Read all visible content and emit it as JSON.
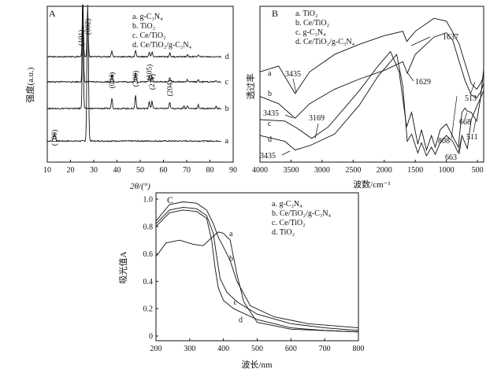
{
  "chart_data": [
    {
      "panel": "A",
      "type": "line",
      "xlabel": "2θ/(°)",
      "ylabel": "强度(a.u.)",
      "xlim": [
        10,
        90
      ],
      "x_ticks": [
        "10",
        "20",
        "30",
        "40",
        "50",
        "60",
        "70",
        "80",
        "90"
      ],
      "legend": [
        {
          "key": "a",
          "text": "a. g-C₃N₄"
        },
        {
          "key": "b",
          "text": "b. TiO₂"
        },
        {
          "key": "c",
          "text": "c. Ce/TiO₂"
        },
        {
          "key": "d",
          "text": "d. Ce/TiO₂/g-C₃N₄"
        }
      ],
      "peak_labels": [
        {
          "text": "(002)",
          "x": 27.4
        },
        {
          "text": "(101)",
          "x": 25.3
        },
        {
          "text": "(100)",
          "x": 13.1
        },
        {
          "text": "(004)",
          "x": 37.8
        },
        {
          "text": "(200)",
          "x": 48.0
        },
        {
          "text": "(105)",
          "x": 53.9
        },
        {
          "text": "(211)",
          "x": 55.1
        },
        {
          "text": "(204)",
          "x": 62.7
        }
      ],
      "series": [
        {
          "name": "a",
          "baseline": 0.1,
          "peaks": [
            [
              13.1,
              0.05,
              0.6
            ],
            [
              27.4,
              0.95,
              0.45
            ]
          ]
        },
        {
          "name": "b",
          "baseline": 0.32,
          "peaks": [
            [
              25.3,
              0.6,
              0.35
            ],
            [
              37.8,
              0.07,
              0.35
            ],
            [
              48.0,
              0.09,
              0.35
            ],
            [
              53.9,
              0.05,
              0.35
            ],
            [
              55.1,
              0.05,
              0.35
            ],
            [
              62.7,
              0.04,
              0.35
            ],
            [
              68.8,
              0.02,
              0.3
            ],
            [
              70.3,
              0.02,
              0.3
            ],
            [
              75.0,
              0.025,
              0.3
            ],
            [
              82.7,
              0.015,
              0.3
            ]
          ]
        },
        {
          "name": "c",
          "baseline": 0.5,
          "peaks": [
            [
              25.3,
              0.55,
              0.35
            ],
            [
              37.8,
              0.05,
              0.35
            ],
            [
              48.0,
              0.06,
              0.35
            ],
            [
              53.9,
              0.04,
              0.35
            ],
            [
              55.1,
              0.04,
              0.35
            ],
            [
              62.7,
              0.03,
              0.35
            ],
            [
              70.3,
              0.015,
              0.3
            ],
            [
              75.0,
              0.015,
              0.3
            ],
            [
              82.7,
              0.01,
              0.3
            ]
          ]
        },
        {
          "name": "d",
          "baseline": 0.67,
          "peaks": [
            [
              25.3,
              0.4,
              0.35
            ],
            [
              27.4,
              0.3,
              0.35
            ],
            [
              37.8,
              0.04,
              0.35
            ],
            [
              48.0,
              0.045,
              0.35
            ],
            [
              53.9,
              0.03,
              0.35
            ],
            [
              55.1,
              0.03,
              0.35
            ],
            [
              62.7,
              0.025,
              0.35
            ],
            [
              70.3,
              0.012,
              0.3
            ],
            [
              75.0,
              0.012,
              0.3
            ]
          ]
        }
      ]
    },
    {
      "panel": "B",
      "type": "line",
      "xlabel": "波数/cm⁻¹",
      "ylabel": "透过率",
      "xlim": [
        4000,
        400
      ],
      "x_ticks": [
        "4000",
        "3500",
        "3000",
        "2500",
        "2000",
        "1500",
        "1000",
        "500"
      ],
      "legend": [
        {
          "key": "a",
          "text": "a. TiO₂"
        },
        {
          "key": "b",
          "text": "b. Ce/TiO₂"
        },
        {
          "key": "c",
          "text": "c. g-C₃N₄"
        },
        {
          "key": "d",
          "text": "d. Ce/TiO₂/g-C₃N₄"
        }
      ],
      "annotations": [
        "1637",
        "3435",
        "1629",
        "513",
        "3435",
        "3169",
        "668",
        "808",
        "511",
        "3435",
        "663"
      ],
      "series": [
        {
          "name": "a",
          "points": [
            [
              4000,
              0.58
            ],
            [
              3700,
              0.62
            ],
            [
              3435,
              0.43
            ],
            [
              3200,
              0.58
            ],
            [
              2800,
              0.7
            ],
            [
              2400,
              0.77
            ],
            [
              2000,
              0.83
            ],
            [
              1700,
              0.86
            ],
            [
              1637,
              0.79
            ],
            [
              1500,
              0.86
            ],
            [
              1200,
              0.95
            ],
            [
              1000,
              0.93
            ],
            [
              800,
              0.78
            ],
            [
              600,
              0.5
            ],
            [
              513,
              0.46
            ],
            [
              450,
              0.5
            ],
            [
              400,
              0.55
            ]
          ]
        },
        {
          "name": "b",
          "points": [
            [
              4000,
              0.41
            ],
            [
              3700,
              0.36
            ],
            [
              3435,
              0.26
            ],
            [
              3200,
              0.36
            ],
            [
              2800,
              0.46
            ],
            [
              2400,
              0.53
            ],
            [
              2000,
              0.59
            ],
            [
              1700,
              0.65
            ],
            [
              1629,
              0.57
            ],
            [
              1500,
              0.7
            ],
            [
              1200,
              0.82
            ],
            [
              1000,
              0.85
            ],
            [
              900,
              0.8
            ],
            [
              700,
              0.52
            ],
            [
              600,
              0.42
            ],
            [
              513,
              0.4
            ],
            [
              450,
              0.44
            ],
            [
              400,
              0.5
            ]
          ]
        },
        {
          "name": "c",
          "points": [
            [
              4000,
              0.25
            ],
            [
              3600,
              0.24
            ],
            [
              3400,
              0.19
            ],
            [
              3169,
              0.12
            ],
            [
              2900,
              0.2
            ],
            [
              2400,
              0.45
            ],
            [
              2100,
              0.62
            ],
            [
              1900,
              0.72
            ],
            [
              1760,
              0.58
            ],
            [
              1640,
              0.2
            ],
            [
              1560,
              0.3
            ],
            [
              1460,
              0.08
            ],
            [
              1400,
              0.18
            ],
            [
              1320,
              0.04
            ],
            [
              1240,
              0.14
            ],
            [
              1180,
              0.06
            ],
            [
              1100,
              0.18
            ],
            [
              1000,
              0.22
            ],
            [
              808,
              0.06
            ],
            [
              750,
              0.3
            ],
            [
              700,
              0.33
            ],
            [
              668,
              0.31
            ],
            [
              600,
              0.3
            ],
            [
              511,
              0.24
            ],
            [
              450,
              0.4
            ],
            [
              400,
              0.6
            ]
          ]
        },
        {
          "name": "d",
          "points": [
            [
              4000,
              0.14
            ],
            [
              3600,
              0.1
            ],
            [
              3435,
              0.04
            ],
            [
              3200,
              0.07
            ],
            [
              2800,
              0.15
            ],
            [
              2400,
              0.35
            ],
            [
              2100,
              0.55
            ],
            [
              1800,
              0.7
            ],
            [
              1700,
              0.48
            ],
            [
              1630,
              0.1
            ],
            [
              1560,
              0.15
            ],
            [
              1460,
              0.02
            ],
            [
              1400,
              0.09
            ],
            [
              1320,
              0.0
            ],
            [
              1240,
              0.06
            ],
            [
              1180,
              0.01
            ],
            [
              1100,
              0.09
            ],
            [
              1000,
              0.14
            ],
            [
              900,
              0.1
            ],
            [
              808,
              0.02
            ],
            [
              750,
              0.14
            ],
            [
              663,
              0.05
            ],
            [
              600,
              0.25
            ],
            [
              513,
              0.34
            ],
            [
              450,
              0.4
            ],
            [
              400,
              0.45
            ]
          ]
        }
      ]
    },
    {
      "panel": "C",
      "type": "line",
      "xlabel": "波长/nm",
      "ylabel": "吸光值A",
      "xlim": [
        200,
        800
      ],
      "ylim": [
        0,
        1.0
      ],
      "x_ticks": [
        "200",
        "300",
        "400",
        "500",
        "600",
        "700",
        "800"
      ],
      "y_ticks": [
        "0",
        "0.2",
        "0.4",
        "0.6",
        "0.8",
        "1.0"
      ],
      "legend": [
        {
          "key": "a",
          "text": "a. g-C₃N₄"
        },
        {
          "key": "b",
          "text": "b. Ce/TiO₂/g-C₃N₄"
        },
        {
          "key": "c",
          "text": "c. Ce/TiO₂"
        },
        {
          "key": "d",
          "text": "d. TiO₂"
        }
      ],
      "series": [
        {
          "name": "a",
          "points": [
            [
              200,
              0.58
            ],
            [
              230,
              0.68
            ],
            [
              270,
              0.7
            ],
            [
              310,
              0.67
            ],
            [
              340,
              0.66
            ],
            [
              370,
              0.73
            ],
            [
              385,
              0.76
            ],
            [
              400,
              0.75
            ],
            [
              420,
              0.7
            ],
            [
              440,
              0.45
            ],
            [
              460,
              0.25
            ],
            [
              500,
              0.1
            ],
            [
              600,
              0.05
            ],
            [
              700,
              0.04
            ],
            [
              800,
              0.03
            ]
          ]
        },
        {
          "name": "b",
          "points": [
            [
              200,
              0.84
            ],
            [
              240,
              0.96
            ],
            [
              280,
              0.98
            ],
            [
              320,
              0.97
            ],
            [
              350,
              0.92
            ],
            [
              370,
              0.82
            ],
            [
              385,
              0.72
            ],
            [
              400,
              0.65
            ],
            [
              420,
              0.55
            ],
            [
              440,
              0.4
            ],
            [
              480,
              0.22
            ],
            [
              550,
              0.14
            ],
            [
              650,
              0.09
            ],
            [
              800,
              0.06
            ]
          ]
        },
        {
          "name": "c",
          "points": [
            [
              200,
              0.82
            ],
            [
              240,
              0.92
            ],
            [
              280,
              0.94
            ],
            [
              320,
              0.93
            ],
            [
              350,
              0.88
            ],
            [
              370,
              0.75
            ],
            [
              380,
              0.58
            ],
            [
              390,
              0.42
            ],
            [
              410,
              0.32
            ],
            [
              440,
              0.25
            ],
            [
              500,
              0.16
            ],
            [
              600,
              0.09
            ],
            [
              700,
              0.06
            ],
            [
              800,
              0.04
            ]
          ]
        },
        {
          "name": "d",
          "points": [
            [
              200,
              0.8
            ],
            [
              240,
              0.9
            ],
            [
              280,
              0.92
            ],
            [
              320,
              0.91
            ],
            [
              350,
              0.86
            ],
            [
              365,
              0.7
            ],
            [
              375,
              0.5
            ],
            [
              385,
              0.35
            ],
            [
              400,
              0.26
            ],
            [
              430,
              0.2
            ],
            [
              500,
              0.12
            ],
            [
              600,
              0.06
            ],
            [
              700,
              0.04
            ],
            [
              800,
              0.03
            ]
          ]
        }
      ]
    }
  ]
}
